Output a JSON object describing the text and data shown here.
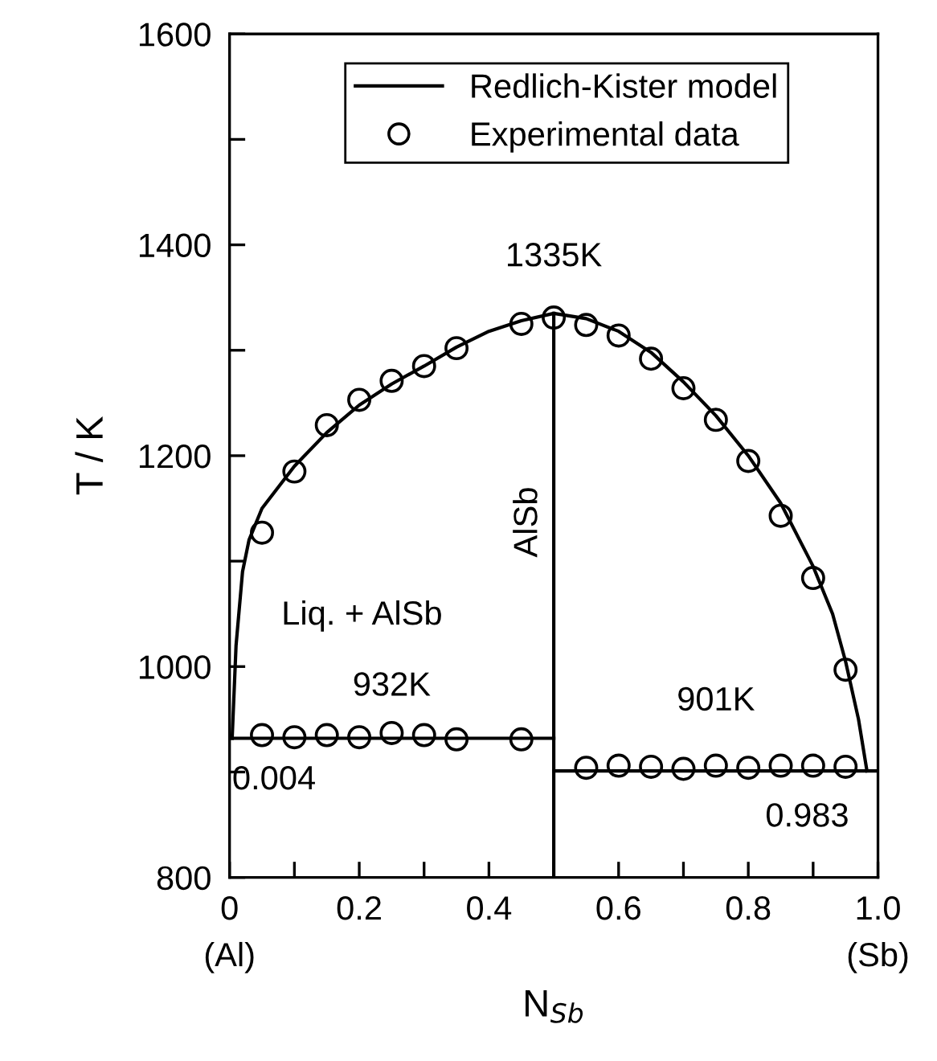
{
  "chart_data": {
    "type": "line",
    "xlabel": "N$_{Sb}$",
    "ylabel": "T / K",
    "xlim": [
      0,
      1.0
    ],
    "ylim": [
      800,
      1600
    ],
    "xticks": [
      0,
      {
        "value": 0.1,
        "label": null
      },
      0.2,
      {
        "value": 0.3,
        "label": null
      },
      0.4,
      {
        "value": 0.5,
        "label": null
      },
      0.6,
      {
        "value": 0.7,
        "label": null
      },
      0.8,
      {
        "value": 0.9,
        "label": null
      },
      {
        "value": 1.0,
        "label": "1.0"
      }
    ],
    "yticks": [
      800,
      {
        "value": 900,
        "label": null
      },
      1000,
      {
        "value": 1100,
        "label": null
      },
      1200,
      {
        "value": 1300,
        "label": null
      },
      1400,
      {
        "value": 1500,
        "label": null
      },
      1600
    ],
    "grid": false,
    "legend": "top",
    "series": [
      {
        "name": "Redlich-Kister model",
        "color": "#000000",
        "marker": "none",
        "line_style": "solid",
        "x": [
          0.004,
          0.01,
          0.02,
          0.03,
          0.05,
          0.1,
          0.15,
          0.2,
          0.25,
          0.3,
          0.35,
          0.4,
          0.45,
          0.5,
          0.55,
          0.6,
          0.65,
          0.7,
          0.75,
          0.8,
          0.85,
          0.9,
          0.93,
          0.95,
          0.97,
          0.983
        ],
        "values": [
          932,
          1020,
          1090,
          1120,
          1150,
          1190,
          1222,
          1248,
          1268,
          1285,
          1303,
          1318,
          1328,
          1335,
          1330,
          1318,
          1298,
          1270,
          1238,
          1200,
          1155,
          1095,
          1050,
          1005,
          950,
          901
        ]
      },
      {
        "color": "#000000",
        "marker": "none",
        "line_style": "solid",
        "x": [
          0,
          0.5
        ],
        "values": [
          932,
          932
        ]
      },
      {
        "color": "#000000",
        "marker": "none",
        "line_style": "solid",
        "x": [
          0.5,
          1.0
        ],
        "values": [
          901,
          901
        ]
      },
      {
        "name": "Experimental data",
        "type": "scatter",
        "color": "#000000",
        "marker": "circle",
        "x": [
          0.05,
          0.1,
          0.15,
          0.2,
          0.25,
          0.3,
          0.35,
          0.45,
          0.5,
          0.55,
          0.6,
          0.65,
          0.7,
          0.75,
          0.8,
          0.85,
          0.9,
          0.95,
          0.05,
          0.1,
          0.15,
          0.2,
          0.25,
          0.3,
          0.35,
          0.45,
          0.55,
          0.6,
          0.65,
          0.7,
          0.75,
          0.8,
          0.85,
          0.9,
          0.95
        ],
        "values": [
          1127,
          1185,
          1229,
          1253,
          1271,
          1285,
          1302,
          1325,
          1331,
          1324,
          1314,
          1292,
          1264,
          1234,
          1195,
          1143,
          1084,
          997,
          935,
          933,
          935,
          933,
          937,
          935,
          931,
          931,
          904,
          906,
          905,
          903,
          906,
          904,
          906,
          906,
          905
        ]
      }
    ],
    "ref_lines": [
      {
        "axis": "x",
        "value": 0.5,
        "label": "AlSb",
        "color": "#000000",
        "line_style": "solid"
      }
    ],
    "annotations": [
      {
        "text": "1335K",
        "x": 0.5,
        "y": 1335
      },
      "Liq. + AlSb",
      {
        "text": "932K",
        "x": 0.25,
        "y": 932
      },
      {
        "text": "901K",
        "x": 0.75,
        "y": 901
      },
      {
        "text": "0.004",
        "x": 0.004,
        "y": 932
      },
      {
        "text": "0.983",
        "x": 0.983,
        "y": 901
      },
      "(Al)",
      "(Sb)"
    ]
  }
}
